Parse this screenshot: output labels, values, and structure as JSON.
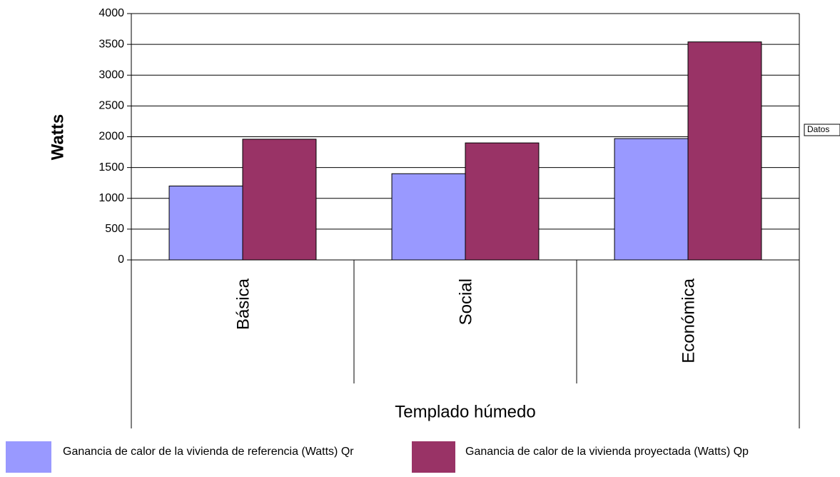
{
  "chart_data": {
    "type": "bar",
    "y_label": "Watts",
    "group_label": "Templado húmedo",
    "annotation": "Datos",
    "categories": [
      "Básica",
      "Social",
      "Económica"
    ],
    "series": [
      {
        "name": "Ganancia de calor de la vivienda de referencia (Watts) Qr",
        "color": "#9999ff",
        "values": [
          1200,
          1400,
          1970
        ]
      },
      {
        "name": "Ganancia de calor de la vivienda proyectada (Watts) Qp",
        "color": "#993366",
        "values": [
          1960,
          1900,
          3540
        ]
      }
    ],
    "ylim": [
      0,
      4000
    ],
    "yticks": [
      0,
      500,
      1000,
      1500,
      2000,
      2500,
      3000,
      3500,
      4000
    ],
    "grid": true
  }
}
